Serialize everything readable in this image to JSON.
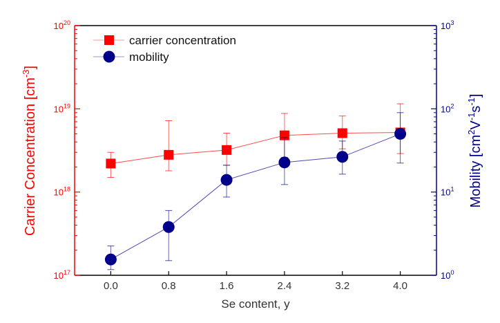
{
  "chart_data": {
    "type": "scatter",
    "xlabel": "Se content, y",
    "xlim": [
      -0.5,
      4.5
    ],
    "xticks": [
      "0.0",
      "0.8",
      "1.6",
      "2.4",
      "3.2",
      "4.0"
    ],
    "x": [
      0.0,
      0.8,
      1.6,
      2.4,
      3.2,
      4.0
    ],
    "left_axis": {
      "label": "Carrier Concentration [cm",
      "label_sup": "-3",
      "label_end": "]",
      "scale": "log",
      "ylim": [
        1e+17,
        1e+20
      ],
      "ticks": [
        {
          "base": "10",
          "exp": "17",
          "value": 1e+17
        },
        {
          "base": "10",
          "exp": "18",
          "value": 1e+18
        },
        {
          "base": "10",
          "exp": "19",
          "value": 1e+19
        },
        {
          "base": "10",
          "exp": "20",
          "value": 1e+20
        }
      ],
      "color": "#ff0000"
    },
    "right_axis": {
      "label": "Mobility [cm",
      "label_sup1": "2",
      "label_mid": "V",
      "label_sup2": "-1",
      "label_mid2": "s",
      "label_sup3": "-1",
      "label_end": "]",
      "scale": "log",
      "ylim": [
        1,
        1000
      ],
      "ticks": [
        {
          "base": "10",
          "exp": "0",
          "value": 1
        },
        {
          "base": "10",
          "exp": "1",
          "value": 10
        },
        {
          "base": "10",
          "exp": "2",
          "value": 100
        },
        {
          "base": "10",
          "exp": "3",
          "value": 1000
        }
      ],
      "color": "#00008b"
    },
    "legend": {
      "placement": "top-left"
    },
    "grid": false,
    "series": [
      {
        "name": "carrier concentration",
        "axis": "left",
        "marker": "square",
        "color": "#ff0000",
        "values": [
          2.2e+18,
          2.8e+18,
          3.2e+18,
          4.8e+18,
          5.1e+18,
          5.2e+18
        ],
        "err_high": [
          3e+18,
          7.2e+18,
          5.1e+18,
          8.8e+18,
          8.2e+18,
          1.15e+19
        ],
        "err_low": [
          1.5e+18,
          1.8e+18,
          2.1e+18,
          2.6e+18,
          3.3e+18,
          2.9e+18
        ]
      },
      {
        "name": "mobility",
        "axis": "right",
        "marker": "circle",
        "color": "#00008b",
        "values": [
          1.55,
          3.8,
          14.0,
          22.7,
          26.5,
          50
        ],
        "err_high": [
          2.25,
          6.0,
          21,
          45,
          41,
          90
        ],
        "err_low": [
          1.17,
          1.5,
          8.7,
          12.3,
          16.4,
          22.3
        ]
      }
    ]
  }
}
